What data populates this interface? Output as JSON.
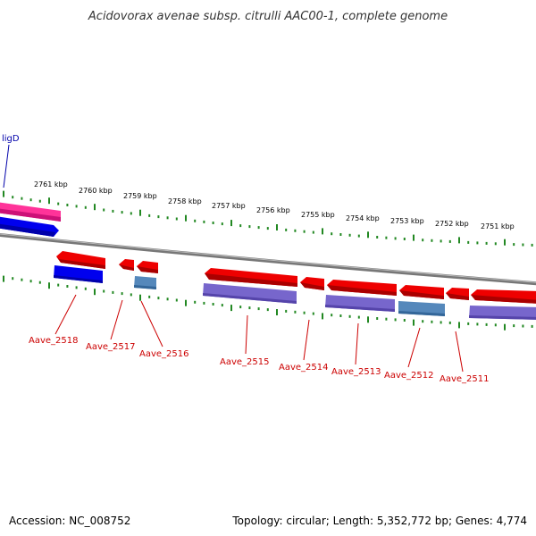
{
  "title": "Acidovorax avenae subsp. citrulli AAC00-1, complete genome",
  "footer": {
    "accession": "Accession: NC_008752",
    "summary": "Topology: circular; Length: 5,352,772 bp; Genes: 4,774"
  },
  "colors": {
    "forward_cds": "#ee0000",
    "reverse_cds_dark": "#7766cc",
    "reverse_cds_teal": "#5588bb",
    "rna_blue": "#0000ee",
    "rna_pink": "#ff3399",
    "backbone": "#888888",
    "ticks": "#228822",
    "labels": "#cc0000",
    "gene_name": "#0000aa"
  },
  "kbp_labels": [
    "2761 kbp",
    "2760 kbp",
    "2759 kbp",
    "2758 kbp",
    "2757 kbp",
    "2756 kbp",
    "2755 kbp",
    "2754 kbp",
    "2753 kbp",
    "2752 kbp",
    "2751 kbp"
  ],
  "named_gene": "ligD",
  "gene_labels": [
    "Aave_2518",
    "Aave_2517",
    "Aave_2516",
    "Aave_2515",
    "Aave_2514",
    "Aave_2513",
    "Aave_2512",
    "Aave_2511"
  ]
}
